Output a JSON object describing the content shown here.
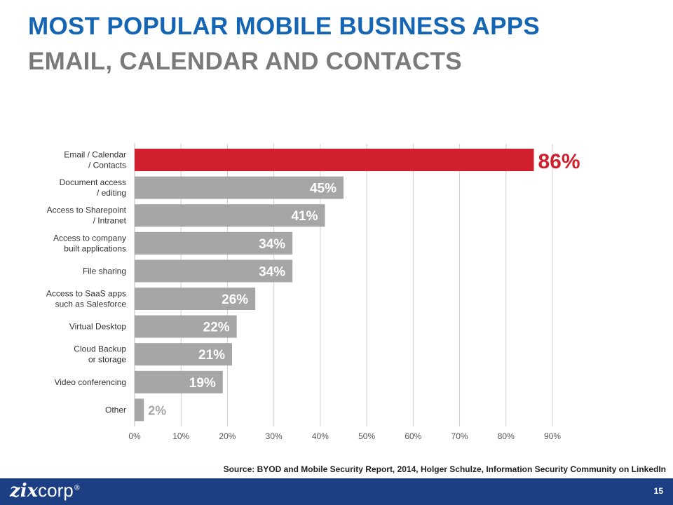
{
  "header": {
    "title": "MOST POPULAR MOBILE BUSINESS APPS",
    "subtitle": "EMAIL, CALENDAR AND CONTACTS"
  },
  "chart_data": {
    "type": "bar",
    "orientation": "horizontal",
    "categories": [
      [
        "Email / Calendar",
        "/ Contacts"
      ],
      [
        "Document access",
        "/ editing"
      ],
      [
        "Access to Sharepoint",
        "/ Intranet"
      ],
      [
        "Access to company",
        "built applications"
      ],
      [
        "File sharing"
      ],
      [
        "Access to SaaS apps",
        "such as Salesforce"
      ],
      [
        "Virtual Desktop"
      ],
      [
        "Cloud Backup",
        "or storage"
      ],
      [
        "Video conferencing"
      ],
      [
        "Other"
      ]
    ],
    "values": [
      86,
      45,
      41,
      34,
      34,
      26,
      22,
      21,
      19,
      2
    ],
    "value_labels": [
      "86%",
      "45%",
      "41%",
      "34%",
      "34%",
      "26%",
      "22%",
      "21%",
      "19%",
      "2%"
    ],
    "xlim": [
      0,
      90
    ],
    "xticks": [
      "0%",
      "10%",
      "20%",
      "30%",
      "40%",
      "50%",
      "60%",
      "70%",
      "80%",
      "90%"
    ],
    "grid": true,
    "highlight_index": 0,
    "colors": {
      "highlight": "#d0202e",
      "bar": "#a6a6a6",
      "grid": "#cfcfcf",
      "label_inside": "#ffffff",
      "label_small": "#a6a6a6"
    }
  },
  "source": "Source: BYOD and Mobile Security Report, 2014, Holger Schulze, Information  Security Community on LinkedIn",
  "footer": {
    "logo_primary": "zix",
    "logo_secondary": "corp",
    "logo_mark": "®",
    "page_number": "15"
  }
}
